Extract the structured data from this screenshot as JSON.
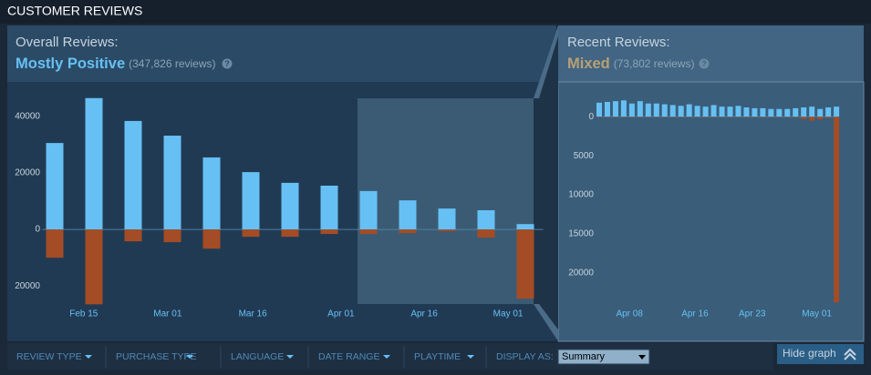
{
  "header": {
    "title": "CUSTOMER REVIEWS"
  },
  "overall": {
    "label": "Overall Reviews:",
    "rating": "Mostly Positive",
    "count": "(347,826 reviews)",
    "help": "?"
  },
  "recent": {
    "label": "Recent Reviews:",
    "rating": "Mixed",
    "count": "(73,802 reviews)",
    "help": "?"
  },
  "chart_data": [
    {
      "type": "bar",
      "categories": [
        null,
        null,
        null,
        null,
        null,
        null,
        null,
        null,
        null,
        null,
        null,
        null,
        null
      ],
      "series": [
        {
          "color": "#66c0f4",
          "values": [
            30600,
            46500,
            38400,
            33200,
            25500,
            20300,
            16500,
            15500,
            13600,
            10300,
            7400,
            6800,
            1900
          ]
        },
        {
          "color": "#a34c25",
          "values": [
            -10000,
            -26500,
            -4200,
            -4500,
            -6800,
            -2600,
            -2600,
            -1600,
            -1600,
            -1300,
            -600,
            -2900,
            -24500
          ]
        }
      ],
      "xlim": [
        -0.5,
        12.5
      ],
      "xticks": [
        {
          "value": 0.74,
          "label": "Feb 15"
        },
        {
          "value": 2.88,
          "label": "Mar 01"
        },
        {
          "value": 5.05,
          "label": "Mar 16"
        },
        {
          "value": 7.3,
          "label": "Apr 01"
        },
        {
          "value": 9.42,
          "label": "Apr 16"
        },
        {
          "value": 11.56,
          "label": "May 01"
        }
      ],
      "ylim": [
        -28000,
        49000
      ],
      "yticks": [
        {
          "value": -20000,
          "label": "20000"
        },
        0,
        20000,
        40000
      ]
    },
    {
      "type": "bar",
      "categories": [
        null,
        null,
        null,
        null,
        null,
        null,
        null,
        null,
        null,
        null,
        null,
        null,
        null,
        null,
        null,
        null,
        null,
        null,
        null,
        null,
        null,
        null,
        null,
        null,
        null,
        null,
        null,
        null,
        null,
        null
      ],
      "series": [
        {
          "color": "#66c0f4",
          "values": [
            1800,
            1900,
            2000,
            2100,
            1700,
            2000,
            1700,
            1700,
            1600,
            1500,
            1400,
            1600,
            1400,
            1300,
            1500,
            1300,
            1300,
            1400,
            1200,
            1100,
            1100,
            1000,
            1000,
            1000,
            1100,
            1200,
            1300,
            1000,
            1200,
            1300
          ]
        },
        {
          "color": "#a34c25",
          "values": [
            -60,
            -60,
            -70,
            -60,
            -60,
            -70,
            -60,
            -60,
            -60,
            -70,
            -60,
            -60,
            -60,
            -70,
            -60,
            -60,
            -60,
            -60,
            -70,
            -60,
            -80,
            -60,
            -60,
            -60,
            -80,
            -300,
            -500,
            -350,
            -150,
            -23800
          ]
        }
      ],
      "xlim": [
        -0.5,
        29.5
      ],
      "xticks": [
        {
          "value": 3.7,
          "label": "Apr 08"
        },
        {
          "value": 11.7,
          "label": "Apr 16"
        },
        {
          "value": 18.7,
          "label": "Apr 23"
        },
        {
          "value": 26.6,
          "label": "May 01"
        }
      ],
      "ylim": [
        -24700,
        3300
      ],
      "yticks": [
        0,
        {
          "value": -5000,
          "label": "5000"
        },
        {
          "value": -10000,
          "label": "10000"
        },
        {
          "value": -15000,
          "label": "15000"
        },
        {
          "value": -20000,
          "label": "20000"
        }
      ]
    }
  ],
  "filters": {
    "items": [
      "REVIEW TYPE",
      "PURCHASE TYPE",
      "LANGUAGE",
      "DATE RANGE",
      "PLAYTIME"
    ],
    "display_label": "DISPLAY AS:",
    "display_value": "Summary",
    "hide_graph": "Hide graph"
  }
}
